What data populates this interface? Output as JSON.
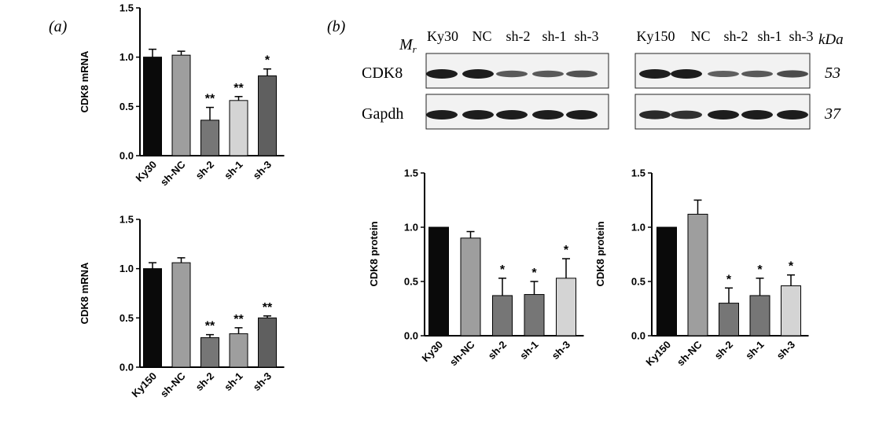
{
  "panels": {
    "a_label": "(a)",
    "b_label": "(b)"
  },
  "blot": {
    "mr_label": "Mr",
    "kda_label": "kDa",
    "left_lanes": [
      "Ky30",
      "NC",
      "sh-2",
      "sh-1",
      "sh-3"
    ],
    "right_lanes": [
      "Ky150",
      "NC",
      "sh-2",
      "sh-1",
      "sh-3"
    ],
    "rows": [
      {
        "name": "CDK8",
        "kda": "53",
        "left_intensity": [
          1.0,
          1.0,
          0.55,
          0.55,
          0.6
        ],
        "right_intensity": [
          1.0,
          1.0,
          0.5,
          0.55,
          0.65
        ]
      },
      {
        "name": "Gapdh",
        "kda": "37",
        "left_intensity": [
          1.0,
          1.0,
          1.0,
          1.0,
          1.0
        ],
        "right_intensity": [
          0.9,
          0.85,
          1.0,
          1.0,
          1.0
        ]
      }
    ]
  },
  "colors": {
    "black": "#0a0a0a",
    "gray": "#9e9e9e",
    "darkgray": "#767676",
    "lightgray": "#d4d4d4",
    "charcoal": "#5f5f5f"
  },
  "chart_data": [
    {
      "id": "a-top",
      "type": "bar",
      "ylabel": "CDK8 mRNA",
      "ylim": [
        0,
        1.5
      ],
      "yticks": [
        "0.0",
        "0.5",
        "1.0",
        "1.5"
      ],
      "categories": [
        "Ky30",
        "sh-NC",
        "sh-2",
        "sh-1",
        "sh-3"
      ],
      "values": [
        1.0,
        1.02,
        0.36,
        0.56,
        0.81
      ],
      "errors": [
        0.08,
        0.04,
        0.13,
        0.04,
        0.07
      ],
      "colors": [
        "black",
        "gray",
        "darkgray",
        "lightgray",
        "charcoal"
      ],
      "significance": [
        "",
        "",
        "**",
        "**",
        "*"
      ]
    },
    {
      "id": "a-bottom",
      "type": "bar",
      "ylabel": "CDK8 mRNA",
      "ylim": [
        0,
        1.5
      ],
      "yticks": [
        "0.0",
        "0.5",
        "1.0",
        "1.5"
      ],
      "categories": [
        "Ky150",
        "sh-NC",
        "sh-2",
        "sh-1",
        "sh-3"
      ],
      "values": [
        1.0,
        1.06,
        0.3,
        0.34,
        0.5
      ],
      "errors": [
        0.06,
        0.05,
        0.03,
        0.06,
        0.02
      ],
      "colors": [
        "black",
        "gray",
        "darkgray",
        "gray",
        "charcoal"
      ],
      "significance": [
        "",
        "",
        "**",
        "**",
        "**"
      ]
    },
    {
      "id": "b-left",
      "type": "bar",
      "ylabel": "CDK8 protein",
      "ylim": [
        0,
        1.5
      ],
      "yticks": [
        "0.0",
        "0.5",
        "1.0",
        "1.5"
      ],
      "categories": [
        "Ky30",
        "sh-NC",
        "sh-2",
        "sh-1",
        "sh-3"
      ],
      "values": [
        1.0,
        0.9,
        0.37,
        0.38,
        0.53
      ],
      "errors": [
        0.0,
        0.06,
        0.16,
        0.12,
        0.18
      ],
      "colors": [
        "black",
        "gray",
        "darkgray",
        "darkgray",
        "lightgray"
      ],
      "significance": [
        "",
        "",
        "*",
        "*",
        "*"
      ]
    },
    {
      "id": "b-right",
      "type": "bar",
      "ylabel": "CDK8 protein",
      "ylim": [
        0,
        1.5
      ],
      "yticks": [
        "0.0",
        "0.5",
        "1.0",
        "1.5"
      ],
      "categories": [
        "Ky150",
        "sh-NC",
        "sh-2",
        "sh-1",
        "sh-3"
      ],
      "values": [
        1.0,
        1.12,
        0.3,
        0.37,
        0.46
      ],
      "errors": [
        0.0,
        0.13,
        0.14,
        0.16,
        0.1
      ],
      "colors": [
        "black",
        "gray",
        "darkgray",
        "darkgray",
        "lightgray"
      ],
      "significance": [
        "",
        "",
        "*",
        "*",
        "*"
      ]
    }
  ]
}
